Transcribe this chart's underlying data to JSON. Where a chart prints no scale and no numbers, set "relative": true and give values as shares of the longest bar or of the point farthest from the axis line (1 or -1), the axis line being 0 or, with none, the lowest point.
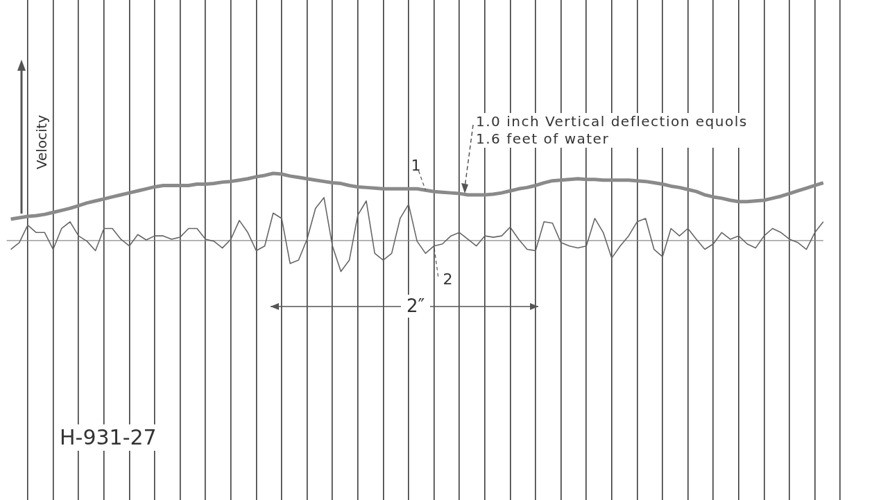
{
  "chart_data": {
    "type": "line",
    "relative": true,
    "ylabel": "Velocity",
    "legend": false,
    "tick_labels": false,
    "grid": "x",
    "marker": "none",
    "line_style": "solid",
    "categories": [
      null,
      null,
      null,
      null,
      null,
      null,
      null,
      null,
      null,
      null,
      null,
      null,
      null,
      null,
      null,
      null,
      null,
      null,
      null,
      null,
      null,
      null,
      null,
      null,
      null,
      null,
      null,
      null,
      null,
      null,
      null,
      null,
      null,
      null,
      null,
      null,
      null,
      null,
      null,
      null,
      null,
      null,
      null,
      null,
      null,
      null,
      null,
      null,
      null,
      null,
      null,
      null,
      null,
      null,
      null,
      null,
      null,
      null,
      null,
      null,
      null,
      null,
      null,
      null,
      null,
      null,
      null,
      null,
      null,
      null,
      null,
      null,
      null,
      null,
      null,
      null,
      null,
      null,
      null,
      null,
      null,
      null,
      null,
      null,
      null,
      null,
      null,
      null,
      null,
      null,
      null,
      null,
      null,
      null,
      null,
      null,
      null,
      null,
      null,
      null,
      null
    ],
    "series": [
      {
        "name": "1",
        "color": "#8a8a8a",
        "values": [
          0.32,
          0.34,
          0.36,
          0.37,
          0.39,
          0.42,
          0.45,
          0.48,
          0.52,
          0.56,
          0.59,
          0.62,
          0.65,
          0.68,
          0.71,
          0.74,
          0.77,
          0.8,
          0.82,
          0.82,
          0.82,
          0.82,
          0.84,
          0.84,
          0.85,
          0.87,
          0.88,
          0.9,
          0.92,
          0.95,
          0.97,
          1.0,
          0.99,
          0.96,
          0.94,
          0.92,
          0.9,
          0.88,
          0.86,
          0.85,
          0.82,
          0.8,
          0.79,
          0.78,
          0.77,
          0.77,
          0.77,
          0.77,
          0.77,
          0.75,
          0.73,
          0.72,
          0.71,
          0.7,
          0.68,
          0.68,
          0.68,
          0.69,
          0.71,
          0.74,
          0.77,
          0.79,
          0.82,
          0.86,
          0.89,
          0.9,
          0.91,
          0.92,
          0.91,
          0.91,
          0.9,
          0.9,
          0.9,
          0.9,
          0.89,
          0.88,
          0.86,
          0.84,
          0.81,
          0.79,
          0.76,
          0.73,
          0.68,
          0.65,
          0.63,
          0.6,
          0.58,
          0.58,
          0.59,
          0.6,
          0.63,
          0.66,
          0.7,
          0.74,
          0.78,
          0.82,
          0.86,
          null,
          null,
          null,
          null
        ]
      },
      {
        "name": "2",
        "color": "#666666",
        "values": [
          -0.13,
          -0.03,
          0.23,
          0.12,
          0.12,
          -0.13,
          0.18,
          0.28,
          0.07,
          -0.01,
          -0.15,
          0.18,
          0.18,
          0.02,
          -0.08,
          0.09,
          0.01,
          0.07,
          0.07,
          0.02,
          0.05,
          0.18,
          0.18,
          0.02,
          -0.01,
          -0.11,
          0.02,
          0.3,
          0.12,
          -0.15,
          -0.08,
          0.41,
          0.33,
          -0.34,
          -0.29,
          0.02,
          0.48,
          0.64,
          -0.08,
          -0.46,
          -0.29,
          0.38,
          0.59,
          -0.19,
          -0.29,
          -0.19,
          0.33,
          0.54,
          -0.01,
          -0.19,
          -0.08,
          -0.05,
          0.07,
          0.12,
          0.02,
          -0.08,
          0.07,
          0.05,
          0.07,
          0.2,
          0.02,
          -0.13,
          -0.15,
          0.28,
          0.26,
          -0.03,
          -0.08,
          -0.11,
          -0.08,
          0.33,
          0.12,
          -0.26,
          -0.08,
          0.07,
          0.28,
          0.33,
          -0.13,
          -0.24,
          0.18,
          0.07,
          0.18,
          0.02,
          -0.13,
          -0.05,
          0.12,
          0.02,
          0.07,
          -0.05,
          -0.11,
          0.07,
          0.18,
          0.12,
          0.02,
          -0.03,
          -0.13,
          0.12,
          0.28,
          null,
          null,
          null,
          null
        ]
      }
    ],
    "ref_lines": [
      {
        "axis": "y",
        "value": 0,
        "color": "#888888"
      }
    ],
    "annotations": [
      "1.0 inch Vertical deflection equols\n1.6 feet of water",
      "2″",
      "H-931-27"
    ]
  }
}
